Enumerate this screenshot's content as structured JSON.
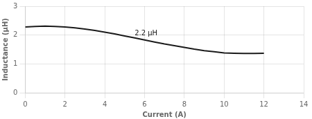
{
  "chart_data": {
    "type": "line",
    "xlabel": "Current (A)",
    "ylabel": "Inductance (μH)",
    "x": [
      0,
      0.5,
      1.0,
      1.5,
      2.0,
      2.5,
      3.0,
      3.5,
      4.0,
      4.5,
      5.0,
      5.5,
      6.0,
      6.5,
      7.0,
      7.5,
      8.0,
      8.5,
      9.0,
      9.5,
      10.0,
      10.5,
      11.0,
      11.5,
      12.0
    ],
    "values": [
      2.28,
      2.3,
      2.31,
      2.3,
      2.28,
      2.25,
      2.21,
      2.16,
      2.1,
      2.04,
      1.97,
      1.9,
      1.83,
      1.76,
      1.69,
      1.63,
      1.57,
      1.51,
      1.46,
      1.42,
      1.38,
      1.37,
      1.36,
      1.36,
      1.37
    ],
    "color": "#1a1a1a",
    "xlim": [
      0,
      14
    ],
    "ylim": [
      0,
      3
    ],
    "xticks": [
      0,
      2,
      4,
      6,
      8,
      10,
      12,
      14
    ],
    "yticks": [
      0,
      1,
      2,
      3
    ],
    "grid": true,
    "annotations": [
      {
        "text": "2.2 μH",
        "x": 5.5,
        "y": 2.05
      }
    ]
  }
}
